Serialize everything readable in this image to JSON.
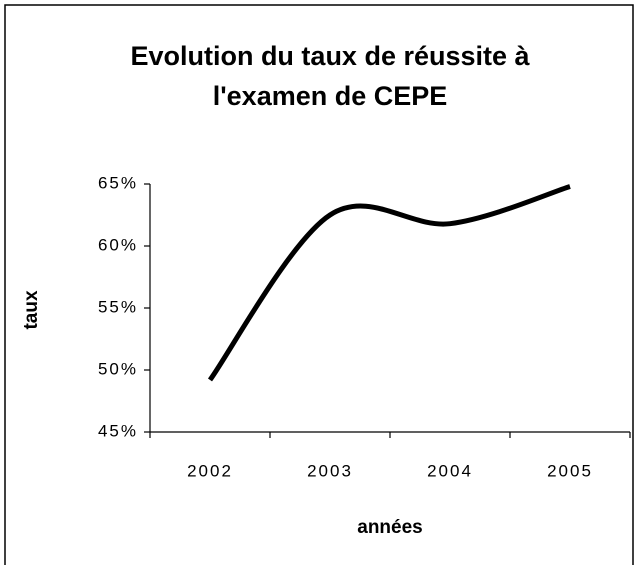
{
  "chart_data": {
    "type": "line",
    "title": [
      "Evolution du taux de réussite à",
      "l'examen de CEPE"
    ],
    "x_label": "années",
    "y_label": "taux",
    "categories": [
      "2002",
      "2003",
      "2004",
      "2005"
    ],
    "values": [
      49.2,
      62.5,
      61.8,
      64.8
    ],
    "color": "#000000",
    "smooth": true,
    "ylim": [
      45,
      65
    ],
    "yticks": [
      {
        "value": 45,
        "label": "45%"
      },
      {
        "value": 50,
        "label": "50%"
      },
      {
        "value": 55,
        "label": "55%"
      },
      {
        "value": 60,
        "label": "60%"
      },
      {
        "value": 65,
        "label": "65%"
      }
    ]
  }
}
